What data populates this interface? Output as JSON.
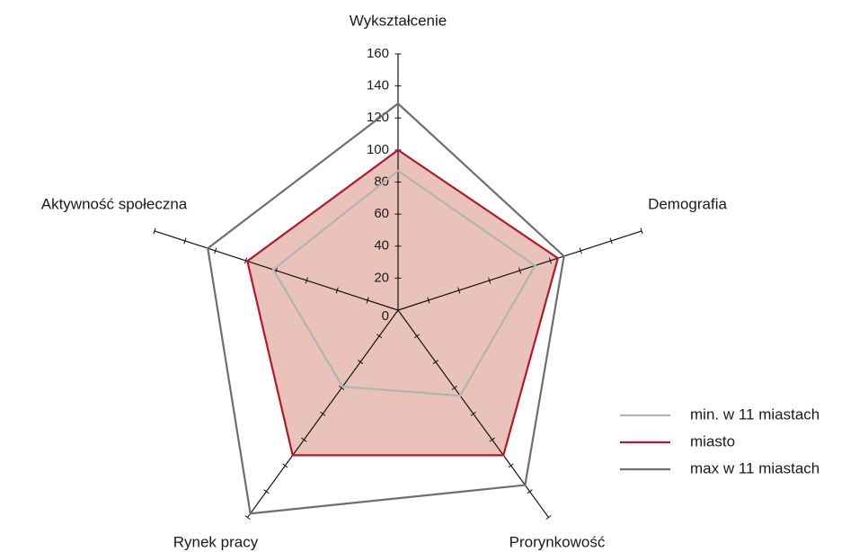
{
  "chart_data": {
    "type": "radar",
    "categories": [
      "Wykształcenie",
      "Demografia",
      "Prorynkowość",
      "Rynek pracy",
      "Aktywność społeczna"
    ],
    "series": [
      {
        "name": "min. w 11 miastach",
        "color": "#b3b3b3",
        "values": [
          87,
          90,
          66,
          59,
          82
        ]
      },
      {
        "name": "miasto",
        "color": "#b5162b",
        "fill": "#e9c3ba",
        "values": [
          100,
          105,
          112,
          112,
          99
        ]
      },
      {
        "name": "max w 11 miastach",
        "color": "#6e6e6e",
        "values": [
          129,
          109,
          135,
          157,
          125
        ]
      }
    ],
    "rlim": [
      0,
      160
    ],
    "rticks": [
      0,
      20,
      40,
      60,
      80,
      100,
      120,
      140,
      160
    ]
  }
}
